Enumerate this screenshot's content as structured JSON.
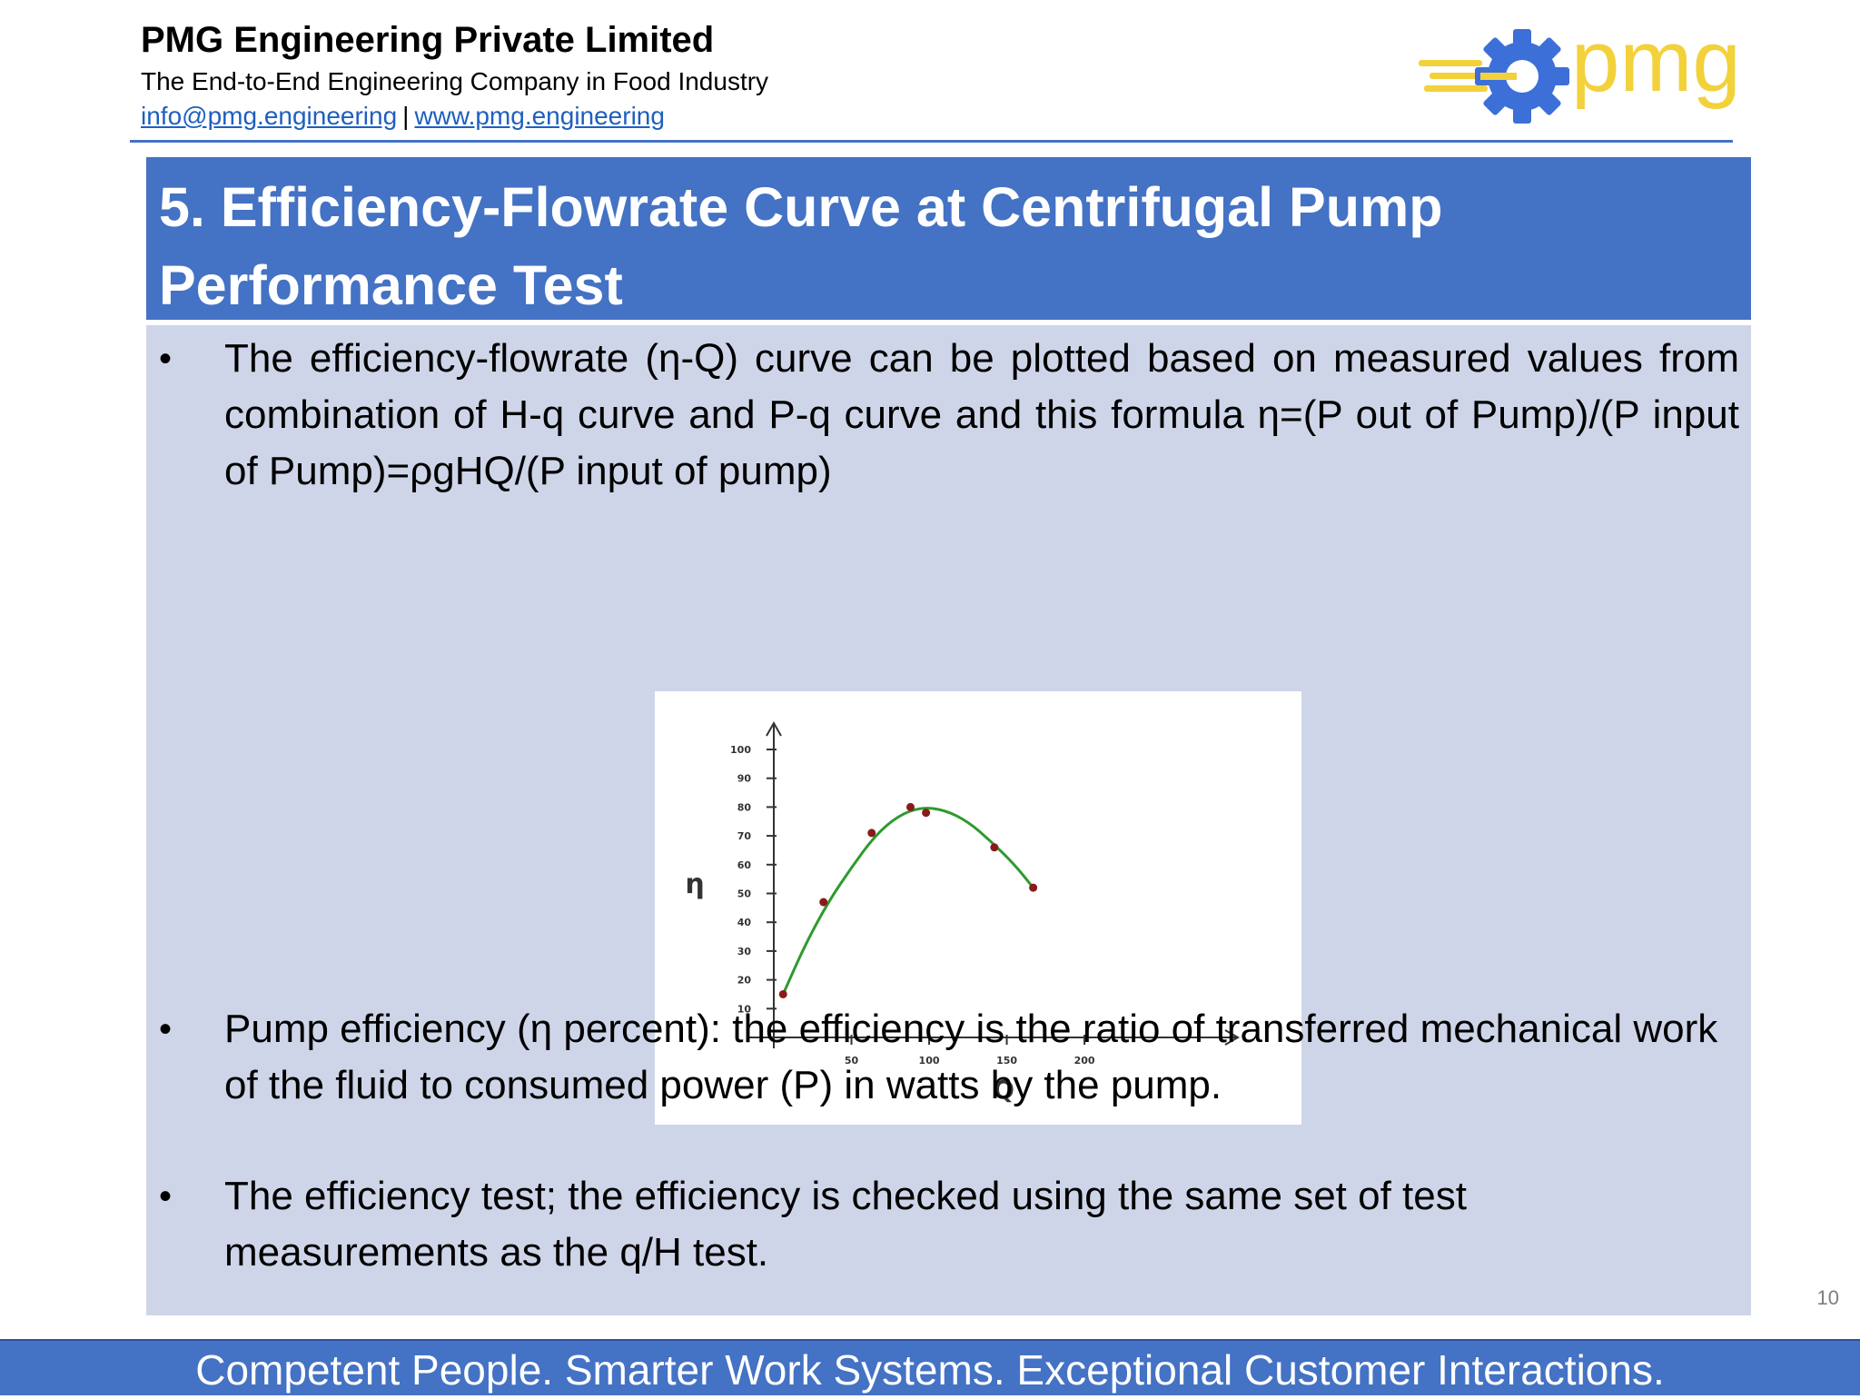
{
  "header": {
    "company_name": "PMG Engineering Private Limited",
    "tagline": "The End-to-End Engineering Company in Food Industry",
    "email": "info@pmg.engineering",
    "separator": "|",
    "website": "www.pmg.engineering",
    "logo_text": "pmg",
    "logo_icon": "gear-icon",
    "colors": {
      "brand_blue": "#4472c4",
      "logo_gold": "#f2d13b",
      "logo_gear": "#3d6fd8"
    }
  },
  "slide": {
    "title_line1": "5. Efficiency-Flowrate Curve at Centrifugal Pump",
    "title_line2": "Performance Test",
    "bullets": [
      "The efficiency-flowrate (η-Q) curve can be plotted based on measured values from combination of H-q curve and P-q curve and this formula η=(P out of Pump)/(P input of Pump)=ρgHQ/(P input of pump)",
      "Pump efficiency (η percent): the efficiency is the ratio of transferred mechanical work of the fluid to consumed power (P) in watts by the pump.",
      "The efficiency test; the efficiency is checked using the same set of test measurements as the q/H test."
    ],
    "bullet_symbol": "•",
    "page_number": "10"
  },
  "chart_data": {
    "type": "scatter",
    "title": "",
    "xlabel": "Q",
    "ylabel": "η",
    "xlim": [
      0,
      225
    ],
    "ylim": [
      0,
      110
    ],
    "x_ticks": [
      50,
      100,
      150,
      200
    ],
    "y_ticks": [
      10,
      20,
      30,
      40,
      50,
      60,
      70,
      80,
      90,
      100
    ],
    "grid": false,
    "series": [
      {
        "points": [
          [
            6,
            15
          ],
          [
            32,
            47
          ],
          [
            63,
            71
          ],
          [
            88,
            80
          ],
          [
            98,
            78
          ],
          [
            142,
            66
          ],
          [
            167,
            52
          ]
        ],
        "color": "#8b1a1a"
      }
    ],
    "fit_curve": {
      "x": [
        6,
        20,
        35,
        50,
        65,
        80,
        95,
        110,
        125,
        140,
        155,
        167
      ],
      "y": [
        15,
        32,
        47,
        59,
        70,
        77,
        80,
        79,
        75,
        68,
        60,
        52
      ],
      "color": "#2e9a2e"
    }
  },
  "footer": {
    "slogan": "Competent People. Smarter Work Systems. Exceptional Customer Interactions."
  }
}
